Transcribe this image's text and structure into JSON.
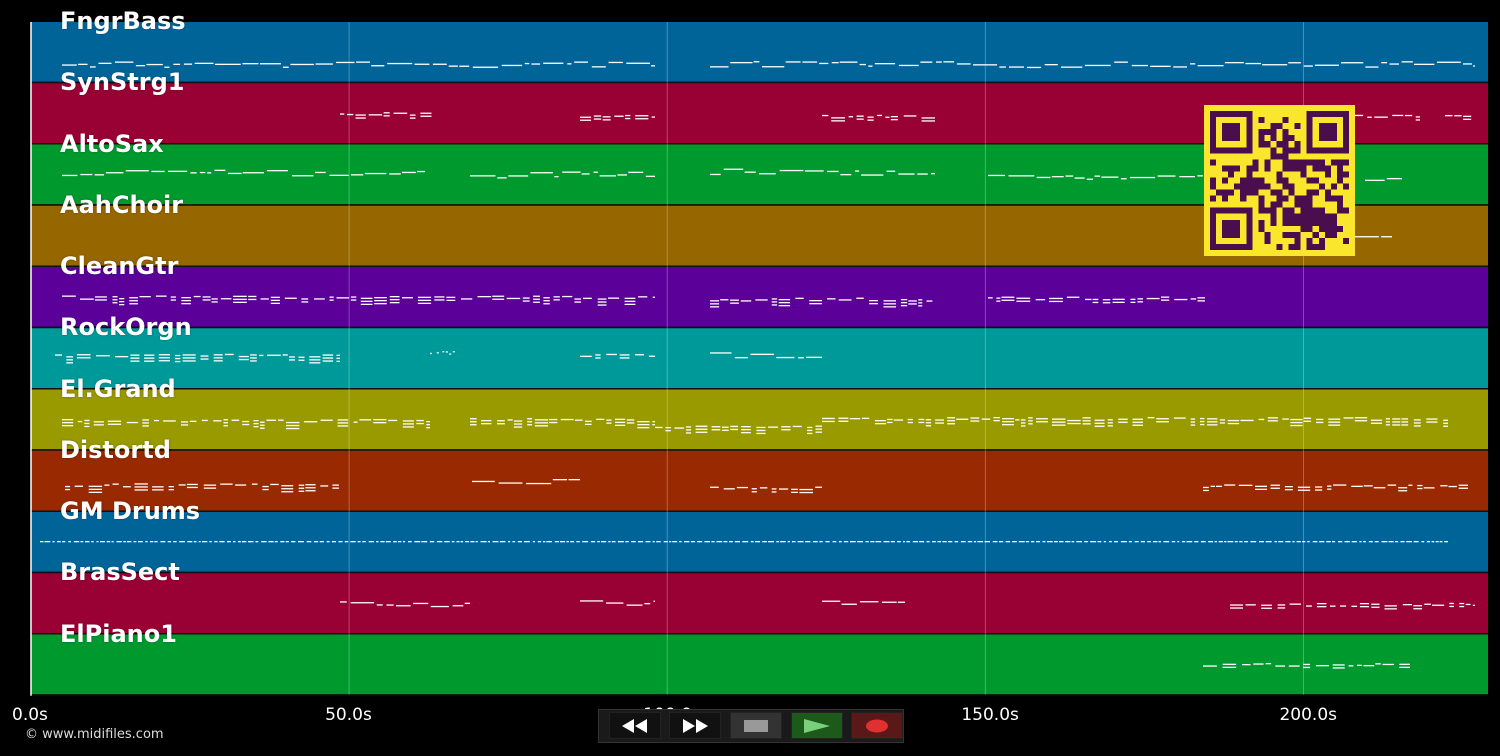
{
  "app": {
    "copyright": "© www.midifiles.com"
  },
  "colors": {
    "background": "#000000",
    "note": "#ffffff",
    "grid": "rgba(255,255,255,0.28)",
    "qr_bg": "#fbe62e",
    "qr_fg": "#4a0e4e"
  },
  "timeline": {
    "unit": "s",
    "range": [
      0,
      229
    ],
    "ticks": [
      {
        "value": 0,
        "label": "0.0s"
      },
      {
        "value": 50,
        "label": "50.0s"
      },
      {
        "value": 100,
        "label": "100.0s"
      },
      {
        "value": 150,
        "label": "150.0s"
      },
      {
        "value": 200,
        "label": "200.0s"
      }
    ]
  },
  "tracks": [
    {
      "name": "FngrBass",
      "color": "#006498"
    },
    {
      "name": "SynStrg1",
      "color": "#990033"
    },
    {
      "name": "AltoSax",
      "color": "#00992e"
    },
    {
      "name": "AahChoir",
      "color": "#966600"
    },
    {
      "name": "CleanGtr",
      "color": "#5b0099"
    },
    {
      "name": "RockOrgn",
      "color": "#009999"
    },
    {
      "name": "El.Grand",
      "color": "#999900"
    },
    {
      "name": "Distortd",
      "color": "#992900"
    },
    {
      "name": "GM Drums",
      "color": "#006498"
    },
    {
      "name": "BrasSect",
      "color": "#990033"
    },
    {
      "name": "ElPiano1",
      "color": "#00992e"
    }
  ],
  "transport": {
    "buttons": [
      {
        "id": "rewind",
        "icon": "rewind-icon"
      },
      {
        "id": "fast-forward",
        "icon": "fast-forward-icon"
      },
      {
        "id": "stop",
        "icon": "stop-icon"
      },
      {
        "id": "play",
        "icon": "play-icon"
      },
      {
        "id": "record",
        "icon": "record-icon"
      }
    ]
  },
  "overlay": {
    "icon": "qr-code-icon"
  }
}
